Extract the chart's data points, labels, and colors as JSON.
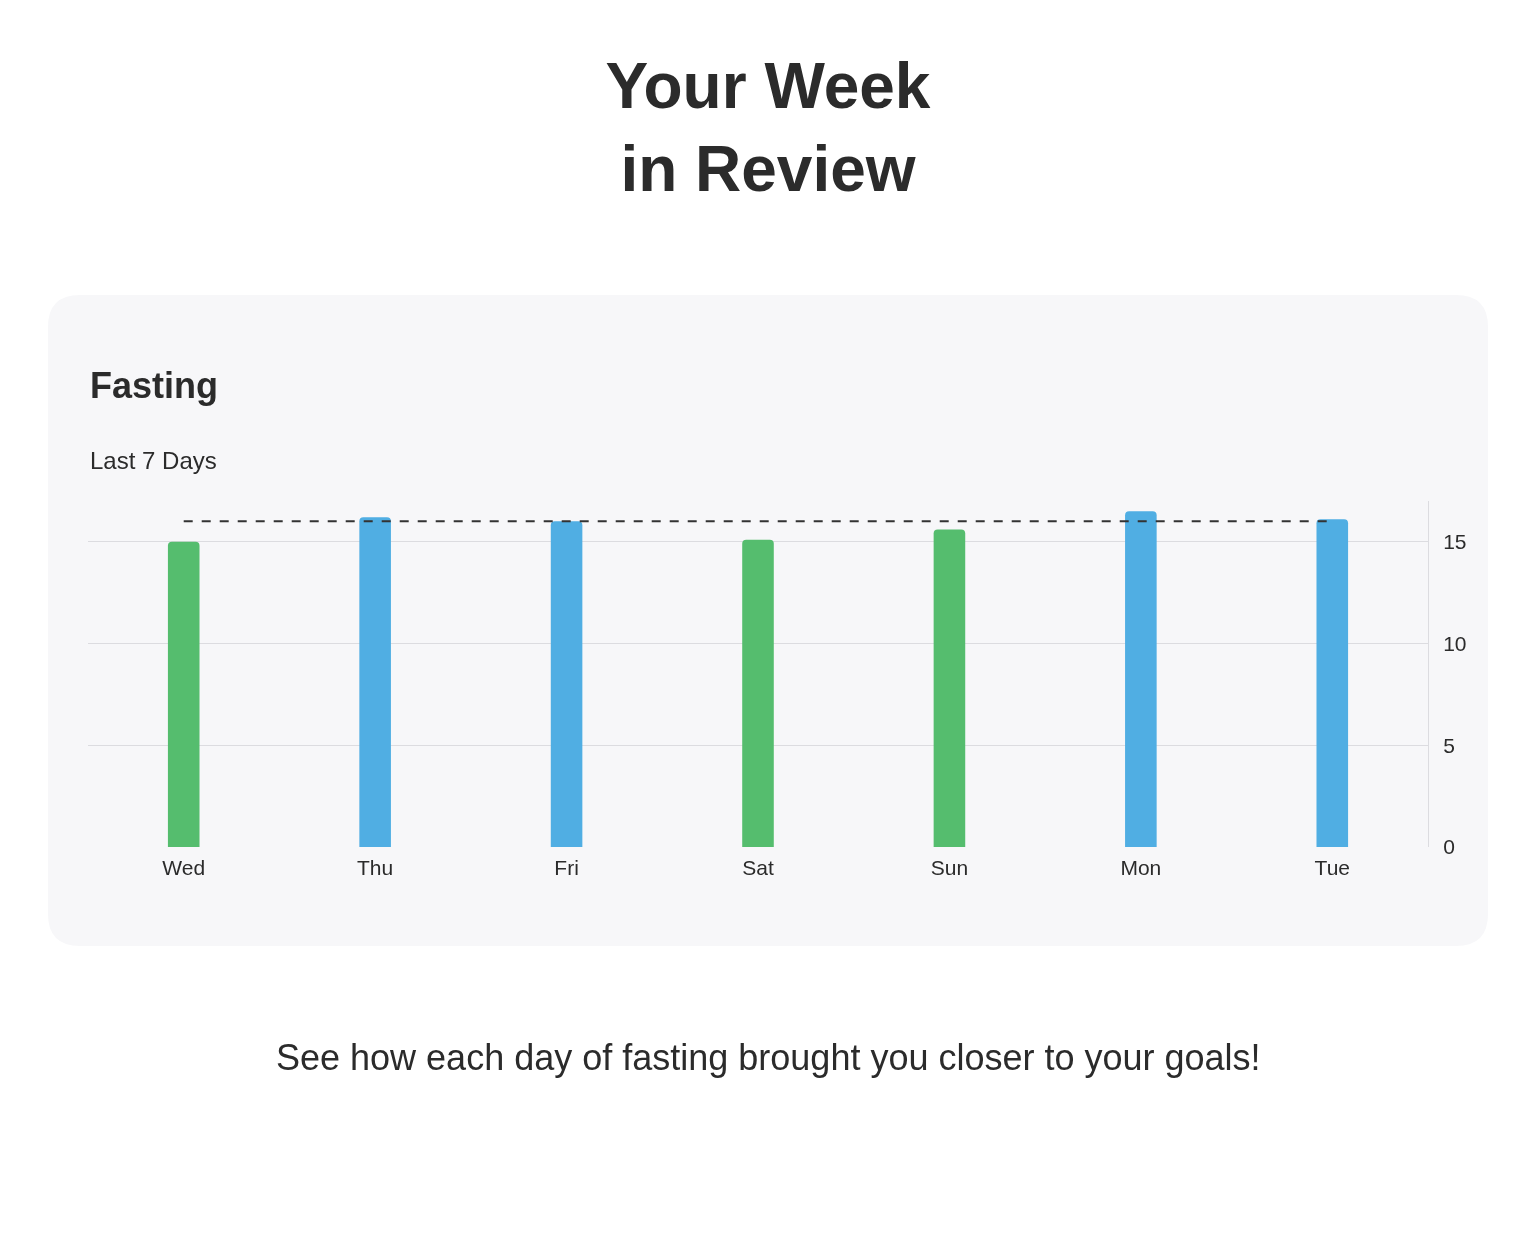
{
  "chart_data": {
    "type": "bar",
    "title": "Your Week\nin Review",
    "subtitle": "Fasting",
    "annotations": [
      "Last 7 Days",
      "See how each day of fasting brought you closer to your goals!"
    ],
    "categories": [
      "Wed",
      "Thu",
      "Fri",
      "Sat",
      "Sun",
      "Mon",
      "Tue"
    ],
    "values": [
      15.0,
      16.2,
      16.0,
      15.1,
      15.6,
      16.5,
      16.1
    ],
    "colors": [
      "#55bd6e",
      "#50aee3",
      "#50aee3",
      "#55bd6e",
      "#55bd6e",
      "#50aee3",
      "#50aee3"
    ],
    "ylim": [
      0,
      17
    ],
    "yticks": [
      0,
      5,
      10,
      15
    ],
    "grid": "y",
    "ref_lines": [
      {
        "axis": "y",
        "value": 16,
        "color": "#333333",
        "line_style": "dashed"
      }
    ]
  }
}
